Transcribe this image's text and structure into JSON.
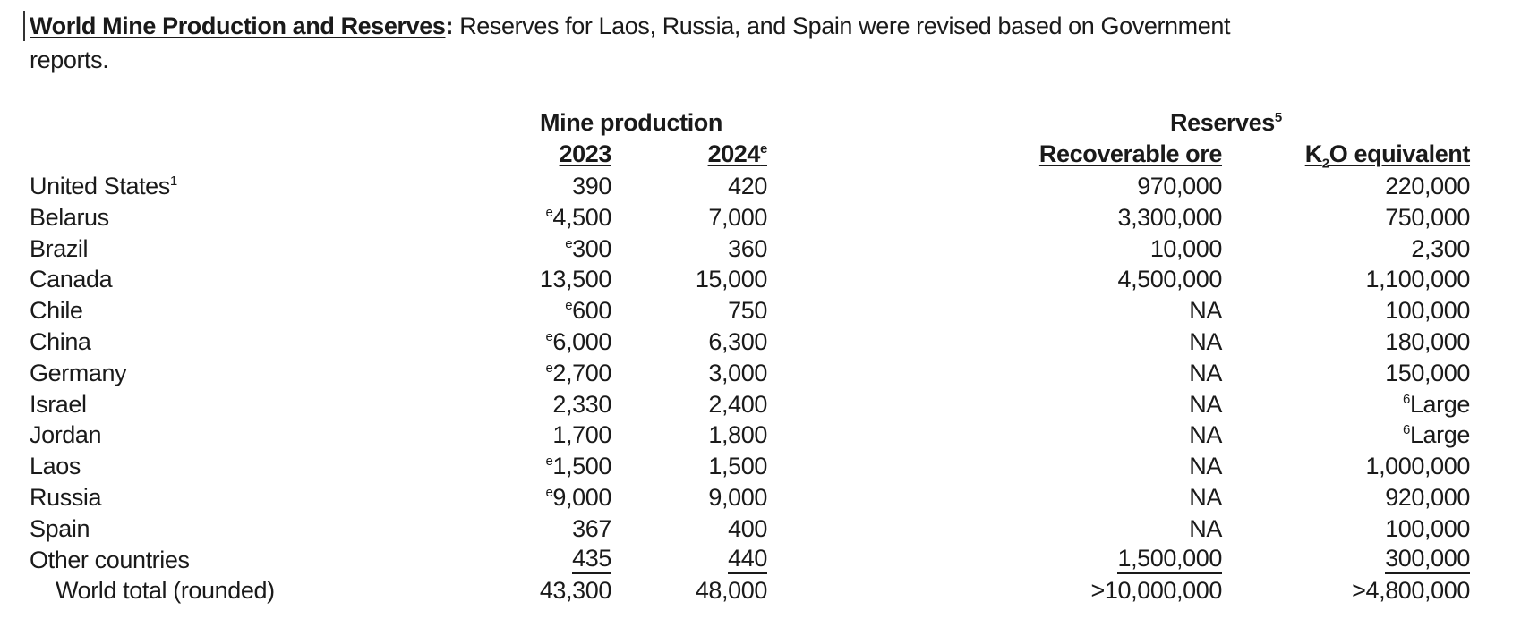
{
  "intro": {
    "heading": "World Mine Production and Reserves",
    "colon": ":",
    "text_line1": "Reserves for Laos, Russia, and Spain were revised based on Government",
    "text_line2": "reports."
  },
  "table": {
    "group_production": "Mine production",
    "group_reserves": "Reserves",
    "group_reserves_footnote": "5",
    "col_2023": "2023",
    "col_2024": "2024",
    "col_2024_note": "e",
    "col_ore": "Recoverable ore",
    "col_k2o_k": "K",
    "col_k2o_sub": "2",
    "col_k2o_rest": "O equivalent",
    "rows": [
      {
        "country": "United States",
        "note": "1",
        "p2023_note": "",
        "p2023": "390",
        "p2024": "420",
        "ore": "970,000",
        "k2o_note": "",
        "k2o": "220,000"
      },
      {
        "country": "Belarus",
        "note": "",
        "p2023_note": "e",
        "p2023": "4,500",
        "p2024": "7,000",
        "ore": "3,300,000",
        "k2o_note": "",
        "k2o": "750,000"
      },
      {
        "country": "Brazil",
        "note": "",
        "p2023_note": "e",
        "p2023": "300",
        "p2024": "360",
        "ore": "10,000",
        "k2o_note": "",
        "k2o": "2,300"
      },
      {
        "country": "Canada",
        "note": "",
        "p2023_note": "",
        "p2023": "13,500",
        "p2024": "15,000",
        "ore": "4,500,000",
        "k2o_note": "",
        "k2o": "1,100,000"
      },
      {
        "country": "Chile",
        "note": "",
        "p2023_note": "e",
        "p2023": "600",
        "p2024": "750",
        "ore": "NA",
        "k2o_note": "",
        "k2o": "100,000"
      },
      {
        "country": "China",
        "note": "",
        "p2023_note": "e",
        "p2023": "6,000",
        "p2024": "6,300",
        "ore": "NA",
        "k2o_note": "",
        "k2o": "180,000"
      },
      {
        "country": "Germany",
        "note": "",
        "p2023_note": "e",
        "p2023": "2,700",
        "p2024": "3,000",
        "ore": "NA",
        "k2o_note": "",
        "k2o": "150,000"
      },
      {
        "country": "Israel",
        "note": "",
        "p2023_note": "",
        "p2023": "2,330",
        "p2024": "2,400",
        "ore": "NA",
        "k2o_note": "6",
        "k2o": "Large"
      },
      {
        "country": "Jordan",
        "note": "",
        "p2023_note": "",
        "p2023": "1,700",
        "p2024": "1,800",
        "ore": "NA",
        "k2o_note": "6",
        "k2o": "Large"
      },
      {
        "country": "Laos",
        "note": "",
        "p2023_note": "e",
        "p2023": "1,500",
        "p2024": "1,500",
        "ore": "NA",
        "k2o_note": "",
        "k2o": "1,000,000"
      },
      {
        "country": "Russia",
        "note": "",
        "p2023_note": "e",
        "p2023": "9,000",
        "p2024": "9,000",
        "ore": "NA",
        "k2o_note": "",
        "k2o": "920,000"
      },
      {
        "country": "Spain",
        "note": "",
        "p2023_note": "",
        "p2023": "367",
        "p2024": "400",
        "ore": "NA",
        "k2o_note": "",
        "k2o": "100,000"
      },
      {
        "country": "Other countries",
        "note": "",
        "p2023_note": "",
        "p2023": "435",
        "p2024": "440",
        "ore": "1,500,000",
        "k2o_note": "",
        "k2o": "300,000"
      }
    ],
    "total": {
      "country": "World total (rounded)",
      "p2023": "43,300",
      "p2024": "48,000",
      "ore": ">10,000,000",
      "k2o": ">4,800,000"
    }
  }
}
